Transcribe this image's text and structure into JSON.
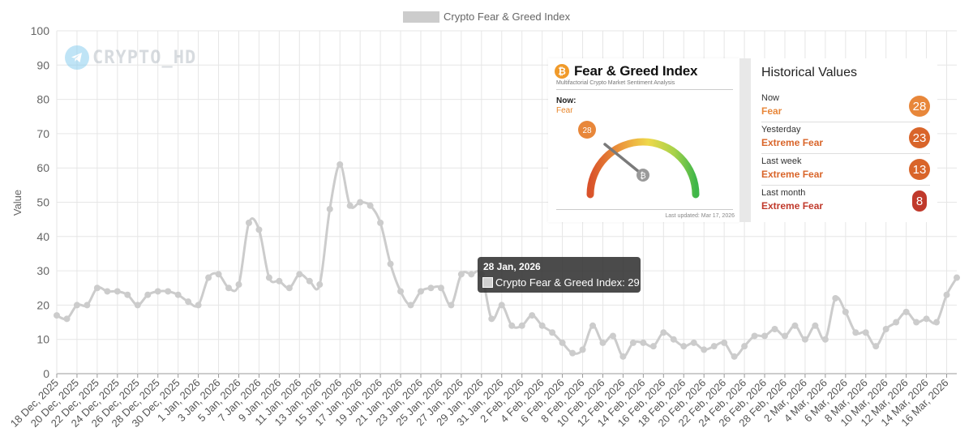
{
  "chart_data": {
    "type": "line",
    "title": "",
    "legend": "Crypto Fear & Greed Index",
    "legend_position": "top",
    "xlabel": "",
    "ylabel": "Value",
    "ylim": [
      0,
      100
    ],
    "yticks": [
      0,
      10,
      20,
      30,
      40,
      50,
      60,
      70,
      80,
      90,
      100
    ],
    "grid": true,
    "series_color": "#cccccc",
    "x_tick_labels": [
      "18 Dec, 2025",
      "20 Dec, 2025",
      "22 Dec, 2025",
      "24 Dec, 2025",
      "26 Dec, 2025",
      "28 Dec, 2025",
      "30 Dec, 2025",
      "1 Jan, 2026",
      "3 Jan, 2026",
      "5 Jan, 2026",
      "7 Jan, 2026",
      "9 Jan, 2026",
      "11 Jan, 2026",
      "13 Jan, 2026",
      "15 Jan, 2026",
      "17 Jan, 2026",
      "19 Jan, 2026",
      "21 Jan, 2026",
      "23 Jan, 2026",
      "25 Jan, 2026",
      "27 Jan, 2026",
      "29 Jan, 2026",
      "31 Jan, 2026",
      "2 Feb, 2026",
      "4 Feb, 2026",
      "6 Feb, 2026",
      "8 Feb, 2026",
      "10 Feb, 2026",
      "12 Feb, 2026",
      "14 Feb, 2026",
      "16 Feb, 2026",
      "18 Feb, 2026",
      "20 Feb, 2026",
      "22 Feb, 2026",
      "24 Feb, 2026",
      "26 Feb, 2026",
      "28 Feb, 2026",
      "2 Mar, 2026",
      "4 Mar, 2026",
      "6 Mar, 2026",
      "8 Mar, 2026",
      "10 Mar, 2026",
      "12 Mar, 2026",
      "14 Mar, 2026",
      "16 Mar, 2026"
    ],
    "values": [
      17,
      16,
      20,
      20,
      25,
      24,
      24,
      23,
      20,
      23,
      24,
      24,
      23,
      21,
      20,
      28,
      29,
      25,
      26,
      44,
      42,
      28,
      27,
      25,
      29,
      27,
      26,
      48,
      61,
      49,
      50,
      49,
      44,
      32,
      24,
      20,
      24,
      25,
      25,
      20,
      29,
      29,
      29,
      16,
      20,
      14,
      14,
      17,
      14,
      12,
      9,
      6,
      7,
      14,
      9,
      11,
      5,
      9,
      9,
      8,
      12,
      10,
      8,
      9,
      7,
      8,
      9,
      5,
      8,
      11,
      11,
      13,
      11,
      14,
      10,
      14,
      10,
      22,
      18,
      12,
      12,
      8,
      13,
      15,
      18,
      15,
      16,
      15,
      23,
      28
    ]
  },
  "watermark": {
    "text": "CRYPTO_HD"
  },
  "fear_greed_card": {
    "title": "Fear & Greed Index",
    "subtitle": "Multifactorial Crypto Market Sentiment Analysis",
    "now_label": "Now:",
    "now_value": "Fear",
    "gauge_value": "28",
    "last_updated": "Last updated: Mar 17, 2026",
    "btc_symbol": "₿"
  },
  "historical": {
    "title": "Historical Values",
    "rows": [
      {
        "label": "Now",
        "value": "Fear",
        "number": "28",
        "color": "#e8873a"
      },
      {
        "label": "Yesterday",
        "value": "Extreme Fear",
        "number": "23",
        "color": "#d9652a"
      },
      {
        "label": "Last week",
        "value": "Extreme Fear",
        "number": "13",
        "color": "#d9652a"
      },
      {
        "label": "Last month",
        "value": "Extreme Fear",
        "number": "8",
        "color": "#c0392b"
      }
    ]
  },
  "tooltip": {
    "date": "28 Jan, 2026",
    "series_label": "Crypto Fear & Greed Index: 29"
  }
}
